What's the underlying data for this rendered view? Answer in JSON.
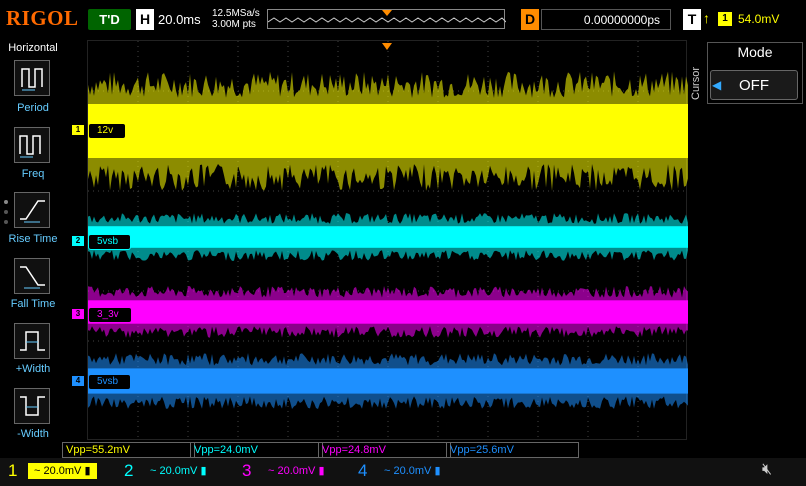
{
  "top": {
    "brand": "RIGOL",
    "status": "T'D",
    "h_label": "H",
    "timebase": "20.0ms",
    "sample_rate": "12.5MSa/s",
    "memory_depth": "3.00M pts",
    "d_label": "D",
    "delay": "0.00000000ps",
    "t_label": "T",
    "trigger_edge": "↑",
    "trigger_source": "1",
    "trigger_level": "54.0mV"
  },
  "menu": {
    "title": "Horizontal",
    "items": [
      {
        "label": "Period",
        "icon": "period-icon"
      },
      {
        "label": "Freq",
        "icon": "frequency-icon"
      },
      {
        "label": "Rise Time",
        "icon": "rise-time-icon"
      },
      {
        "label": "Fall Time",
        "icon": "fall-time-icon"
      },
      {
        "label": "+Width",
        "icon": "positive-width-icon"
      },
      {
        "label": "-Width",
        "icon": "negative-width-icon"
      }
    ]
  },
  "channels": [
    {
      "num": "1",
      "name": "12v",
      "color": "#ffff00",
      "scale": "20.0mV",
      "vpp": "Vpp=55.2mV"
    },
    {
      "num": "2",
      "name": "5vsb",
      "color": "#00ffff",
      "scale": "20.0mV",
      "vpp": "Vpp=24.0mV"
    },
    {
      "num": "3",
      "name": "3_3v",
      "color": "#ff00ff",
      "scale": "20.0mV",
      "vpp": "Vpp=24.8mV"
    },
    {
      "num": "4",
      "name": "5vsb",
      "color": "#1e90ff",
      "scale": "20.0mV",
      "vpp": "Vpp=25.6mV"
    }
  ],
  "right_panel": {
    "side_label": "Cursor",
    "title": "Mode",
    "value": "OFF"
  }
}
